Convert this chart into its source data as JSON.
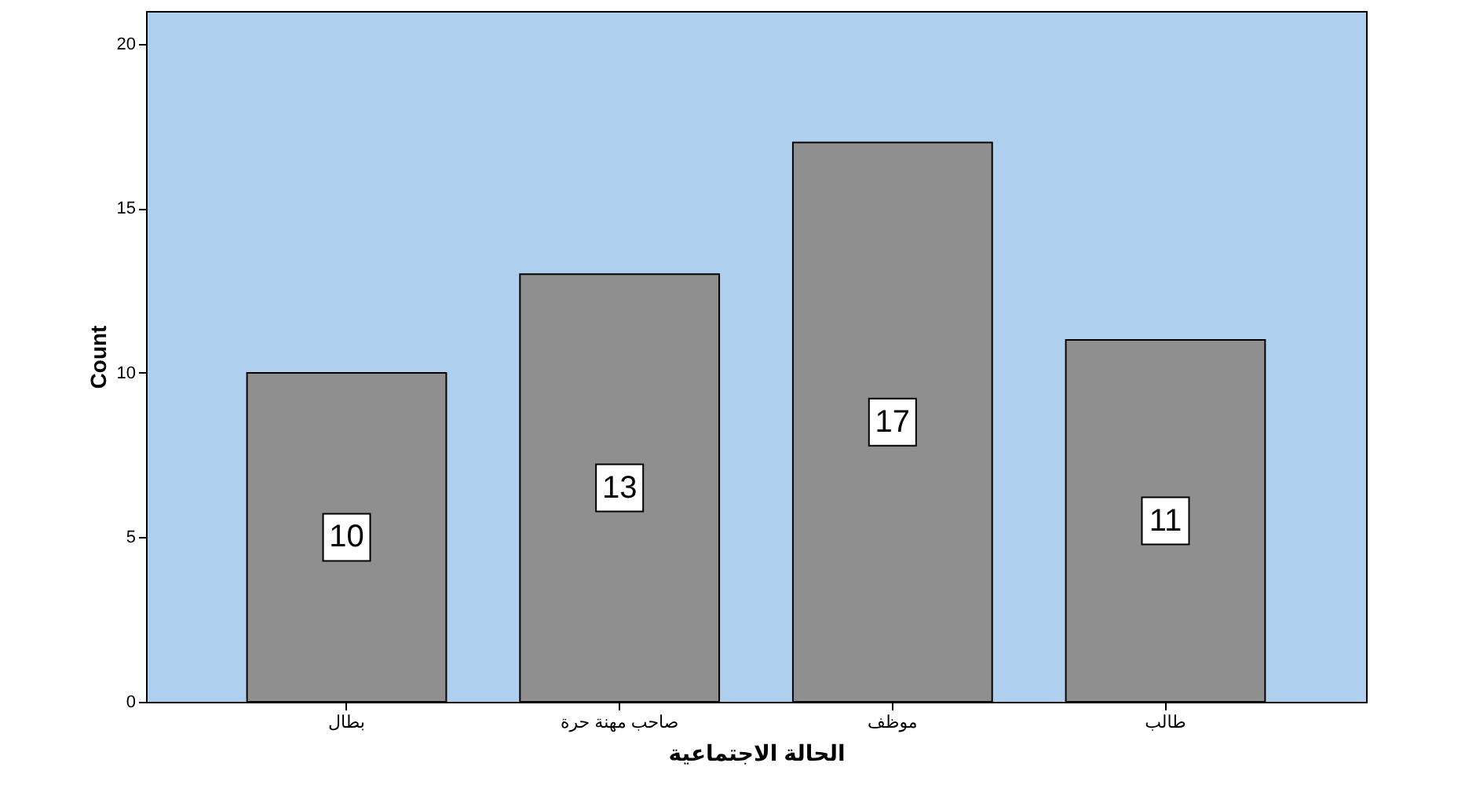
{
  "chart_data": {
    "type": "bar",
    "xlabel": "الحالة الاجتماعية",
    "ylabel": "Count",
    "categories": [
      "بطال",
      "صاحب مهنة حرة",
      "موظف",
      "طالب"
    ],
    "values": [
      10,
      13,
      17,
      11
    ],
    "color": "#8f8f8f",
    "ylim": [
      0,
      21
    ],
    "yticks": [
      0,
      5,
      10,
      15,
      20
    ],
    "grid": false,
    "data_labels": true
  }
}
